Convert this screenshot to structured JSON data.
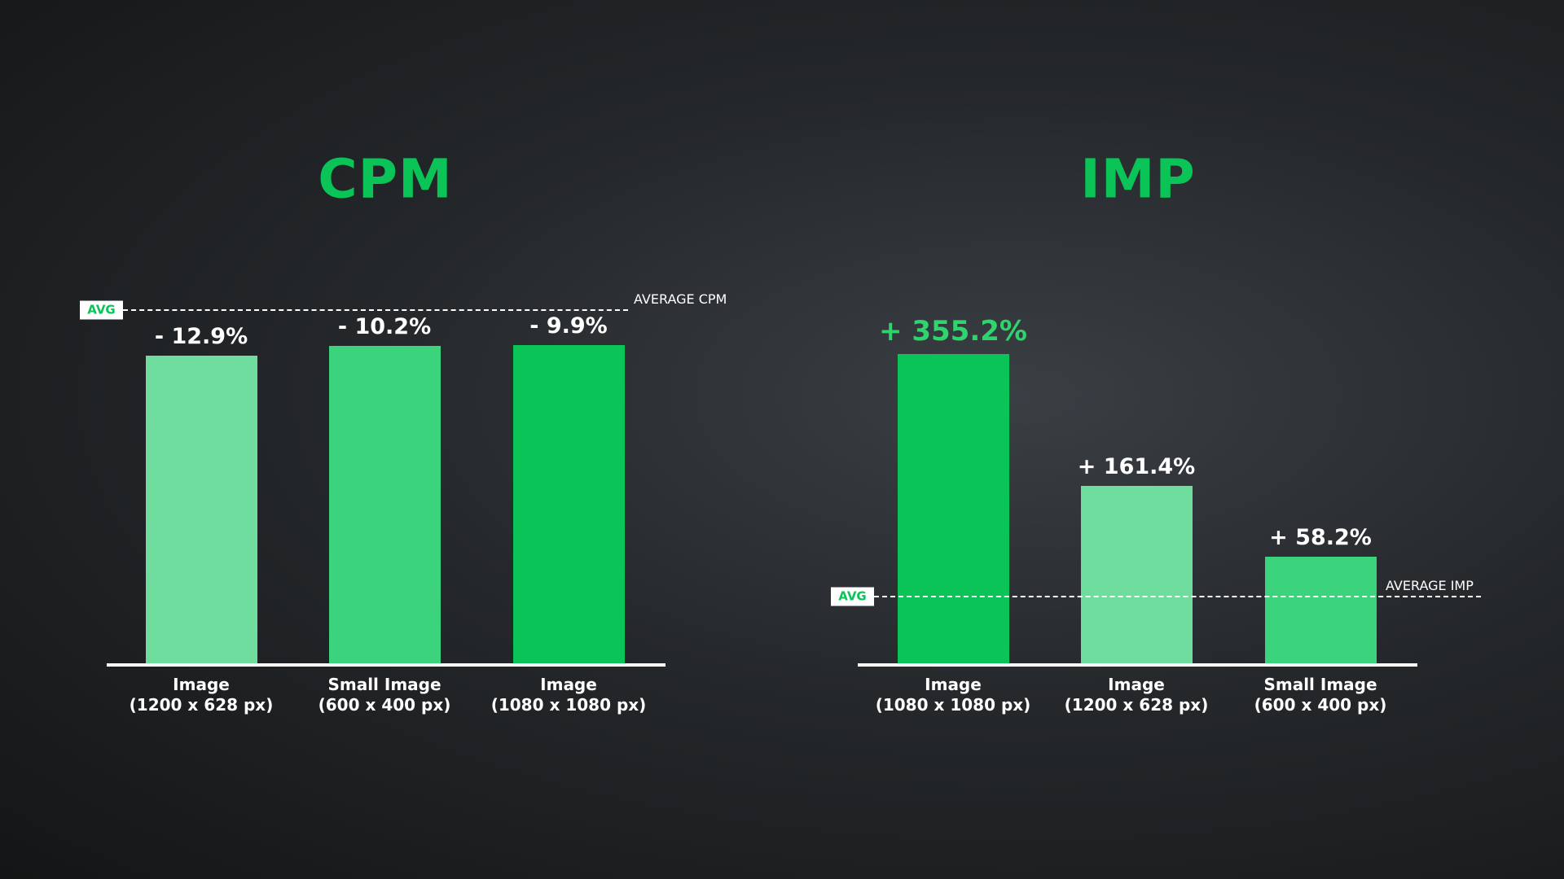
{
  "chart_data": [
    {
      "type": "bar",
      "title": "CPM",
      "categories": [
        "Image\n(1200 x 628 px)",
        "Small Image\n(600 x 400 px)",
        "Image\n(1080 x 1080 px)"
      ],
      "values": [
        -12.9,
        -10.2,
        -9.9
      ],
      "value_labels": [
        "- 12.9%",
        "- 10.2%",
        "- 9.9%"
      ],
      "colors": [
        "#6fdd9d",
        "#3bd47d",
        "#0bc457"
      ],
      "label_colors": [
        "#ffffff",
        "#ffffff",
        "#ffffff"
      ],
      "title_color": "#0bc457",
      "avg_badge": "AVG",
      "avg_label": "AVERAGE CPM"
    },
    {
      "type": "bar",
      "title": "IMP",
      "categories": [
        "Image\n(1080 x 1080 px)",
        "Image\n(1200 x 628 px)",
        "Small Image\n(600 x 400 px)"
      ],
      "values": [
        355.2,
        161.4,
        58.2
      ],
      "value_labels": [
        "+ 355.2%",
        "+ 161.4%",
        "+ 58.2%"
      ],
      "colors": [
        "#0bc457",
        "#6fdd9d",
        "#3bd47d"
      ],
      "label_colors": [
        "#2fd46c",
        "#ffffff",
        "#ffffff"
      ],
      "title_color": "#0bc457",
      "avg_badge": "AVG",
      "avg_label": "AVERAGE IMP"
    }
  ]
}
